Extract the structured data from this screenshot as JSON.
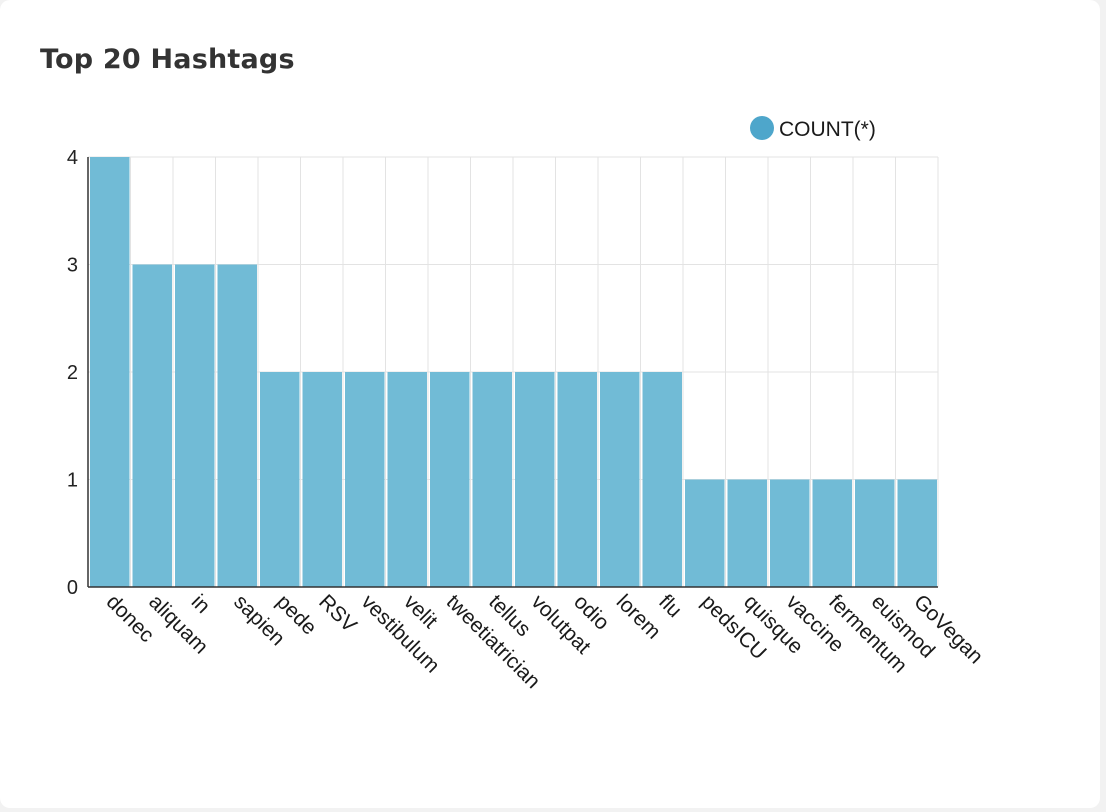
{
  "card": {
    "title": "Top 20 Hashtags"
  },
  "chart_data": {
    "type": "bar",
    "title": "Top 20 Hashtags",
    "xlabel": "",
    "ylabel": "",
    "ylim": [
      0,
      4
    ],
    "yticks": [
      "0",
      "1",
      "2",
      "3",
      "4"
    ],
    "grid": true,
    "legend_position": "top-right",
    "categories": [
      "donec",
      "aliquam",
      "in",
      "sapien",
      "pede",
      "RSV",
      "vestibulum",
      "velit",
      "tweetiatrician",
      "tellus",
      "volutpat",
      "odio",
      "lorem",
      "flu",
      "pedsICU",
      "quisque",
      "vaccine",
      "fermentum",
      "euismod",
      "GoVegan"
    ],
    "series": [
      {
        "name": "COUNT(*)",
        "color": "#71bbd6",
        "values": [
          4,
          3,
          3,
          3,
          2,
          2,
          2,
          2,
          2,
          2,
          2,
          2,
          2,
          2,
          1,
          1,
          1,
          1,
          1,
          1
        ]
      }
    ],
    "legend_marker_color": "#4ea6cb",
    "grid_color": "#e3e3e3",
    "axis_color": "#333333"
  }
}
